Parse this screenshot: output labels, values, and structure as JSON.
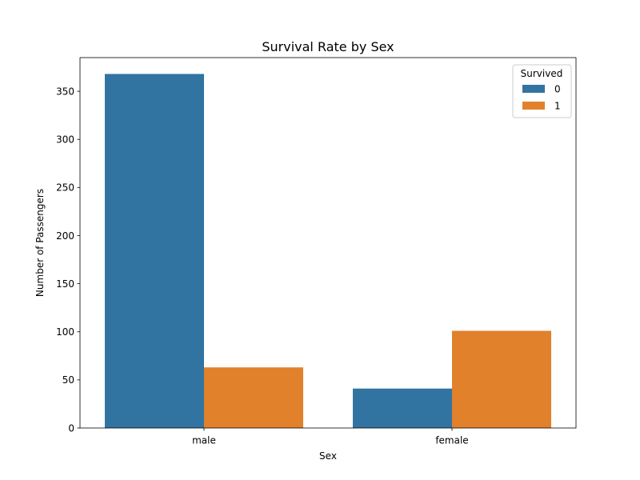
{
  "chart_data": {
    "type": "bar",
    "title": "Survival Rate by Sex",
    "xlabel": "Sex",
    "ylabel": "Number of Passengers",
    "categories": [
      "male",
      "female"
    ],
    "ylim": [
      0,
      385
    ],
    "yticks": [
      0,
      50,
      100,
      150,
      200,
      250,
      300,
      350
    ],
    "grid": false,
    "legend": {
      "title": "Survived",
      "placement": "top-right"
    },
    "series": [
      {
        "name": "0",
        "color": "#3274a1",
        "values": [
          368,
          41
        ]
      },
      {
        "name": "1",
        "color": "#e1812c",
        "values": [
          63,
          101
        ]
      }
    ]
  }
}
